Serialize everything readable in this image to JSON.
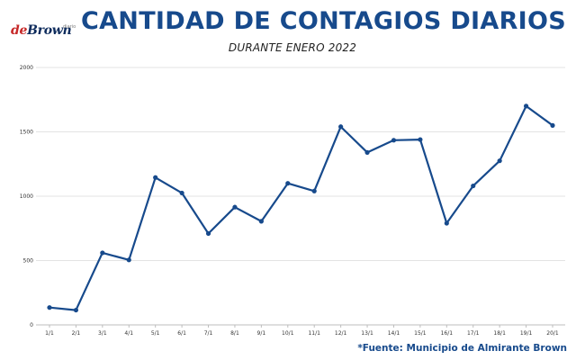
{
  "logo": {
    "part1": "de",
    "part2": "Brown",
    "sub": "diario"
  },
  "header": {
    "title": "CANTIDAD DE CONTAGIOS DIARIOS",
    "subtitle": "DURANTE ENERO 2022"
  },
  "footer": {
    "source": "*Fuente: Municipio de Almirante Brown"
  },
  "colors": {
    "line": "#174a8c",
    "title": "#174a8c",
    "grid": "#e3e3e3",
    "logo_accent": "#c62828"
  },
  "chart_data": {
    "type": "line",
    "title": "CANTIDAD DE CONTAGIOS DIARIOS",
    "subtitle": "DURANTE ENERO 2022",
    "xlabel": "",
    "ylabel": "",
    "categories": [
      "1/1",
      "2/1",
      "3/1",
      "4/1",
      "5/1",
      "6/1",
      "7/1",
      "8/1",
      "9/1",
      "10/1",
      "11/1",
      "12/1",
      "13/1",
      "14/1",
      "15/1",
      "16/1",
      "17/1",
      "18/1",
      "19/1",
      "20/1"
    ],
    "values": [
      135,
      115,
      560,
      505,
      1145,
      1025,
      710,
      915,
      805,
      1100,
      1040,
      1540,
      1340,
      1435,
      1440,
      790,
      1080,
      1275,
      1700,
      1550
    ],
    "ylim": [
      0,
      2000
    ],
    "yticks": [
      0,
      500,
      1000,
      1500,
      2000
    ],
    "grid": true,
    "legend": "none",
    "markers": true
  }
}
